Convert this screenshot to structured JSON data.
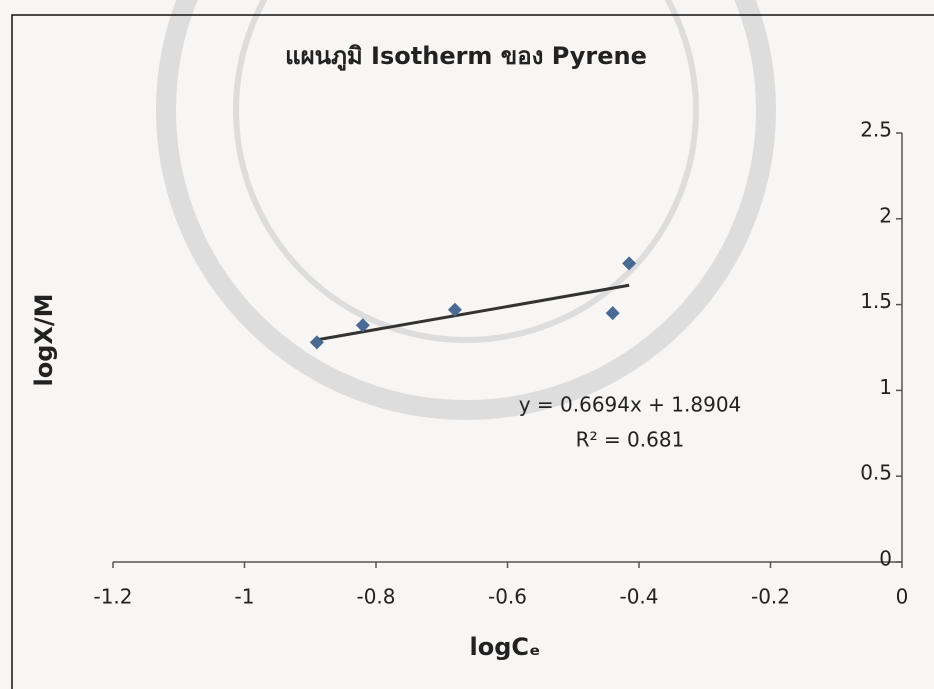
{
  "chart_data": {
    "type": "scatter",
    "title": "แผนภูมิ Isotherm ของ Pyrene",
    "x_label": "logCₑ",
    "y_label": "logX/M",
    "x": [
      -0.89,
      -0.82,
      -0.68,
      -0.44,
      -0.415
    ],
    "values": [
      1.28,
      1.38,
      1.47,
      1.45,
      1.74
    ],
    "color": "#4a6a94",
    "trendline": {
      "slope": 0.6694,
      "intercept": 1.8904,
      "color": "#333333"
    },
    "annotations": [
      "y = 0.6694x + 1.8904",
      "R² = 0.681"
    ],
    "xlim": [
      -1.2,
      0
    ],
    "xticks": [
      -1.2,
      -1,
      -0.8,
      -0.6,
      -0.4,
      -0.2,
      0
    ],
    "ylim": [
      0,
      2.5
    ],
    "yticks": [
      0,
      0.5,
      1,
      1.5,
      2,
      2.5
    ]
  }
}
